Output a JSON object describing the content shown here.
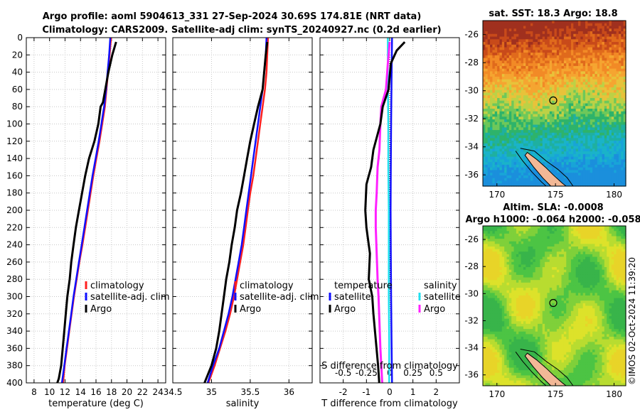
{
  "title": {
    "line1": "Argo profile: aoml 5904613_331 27-Sep-2024 30.69S 174.81E (NRT data)",
    "line2": "Climatology: CARS2009. Satellite-adj clim: synTS_20240927.nc (0.2d earlier)"
  },
  "depth_ticks": [
    0,
    20,
    40,
    60,
    80,
    100,
    120,
    140,
    160,
    180,
    200,
    220,
    240,
    260,
    280,
    300,
    320,
    340,
    360,
    380,
    400
  ],
  "colors": {
    "argo": "#000000",
    "climatology": "#ff2020",
    "satellite": "#1010ff",
    "sal_diff": "#ff20ff",
    "sal_sat": "#20e0f0"
  },
  "chart_data": [
    {
      "type": "line",
      "name": "temperature-panel",
      "xlabel": "temperature (deg C)",
      "ylabel": "",
      "xlim": [
        7,
        25
      ],
      "ylim": [
        400,
        0
      ],
      "xticks": [
        8,
        10,
        12,
        14,
        16,
        18,
        20,
        22,
        24
      ],
      "legend": [
        "climatology",
        "satellite-adj. clim",
        "Argo"
      ],
      "series": [
        {
          "name": "climatology",
          "depth": [
            0,
            20,
            40,
            60,
            80,
            100,
            120,
            140,
            160,
            180,
            200,
            220,
            240,
            260,
            280,
            300,
            320,
            340,
            360,
            380,
            400
          ],
          "values": [
            17.95,
            17.75,
            17.55,
            17.35,
            17.15,
            16.8,
            16.45,
            16.05,
            15.65,
            15.3,
            14.95,
            14.6,
            14.25,
            13.85,
            13.5,
            13.15,
            12.85,
            12.55,
            12.25,
            11.95,
            11.75
          ]
        },
        {
          "name": "satellite-adj. clim",
          "depth": [
            0,
            20,
            40,
            60,
            80,
            100,
            120,
            140,
            160,
            180,
            200,
            220,
            240,
            260,
            280,
            300,
            320,
            340,
            360,
            380,
            400
          ],
          "values": [
            17.85,
            17.7,
            17.5,
            17.3,
            17.05,
            16.7,
            16.35,
            15.95,
            15.55,
            15.2,
            14.85,
            14.5,
            14.15,
            13.8,
            13.45,
            13.1,
            12.8,
            12.5,
            12.2,
            11.9,
            11.6
          ]
        },
        {
          "name": "Argo",
          "depth": [
            5,
            20,
            40,
            60,
            75,
            80,
            100,
            120,
            140,
            160,
            180,
            200,
            220,
            240,
            260,
            280,
            300,
            320,
            340,
            360,
            380,
            395,
            400
          ],
          "values": [
            18.6,
            18.1,
            17.6,
            17.2,
            16.9,
            16.6,
            16.3,
            15.8,
            15.1,
            14.6,
            14.2,
            13.8,
            13.4,
            13.1,
            12.8,
            12.6,
            12.3,
            12.1,
            11.9,
            11.7,
            11.5,
            11.2,
            11.0
          ]
        }
      ]
    },
    {
      "type": "line",
      "name": "salinity-panel",
      "xlabel": "salinity",
      "ylabel": "",
      "xlim": [
        34.5,
        36.3
      ],
      "ylim": [
        400,
        0
      ],
      "xticks": [
        34.5,
        35,
        35.5,
        36
      ],
      "legend": [
        "climatology",
        "satellite-adj. clim",
        "Argo"
      ],
      "series": [
        {
          "name": "climatology",
          "depth": [
            0,
            20,
            40,
            60,
            80,
            100,
            120,
            140,
            160,
            180,
            200,
            220,
            240,
            260,
            280,
            300,
            320,
            340,
            360,
            380,
            400
          ],
          "values": [
            35.73,
            35.72,
            35.71,
            35.69,
            35.66,
            35.63,
            35.6,
            35.57,
            35.54,
            35.5,
            35.47,
            35.44,
            35.41,
            35.37,
            35.33,
            35.29,
            35.24,
            35.18,
            35.11,
            35.04,
            34.96
          ]
        },
        {
          "name": "satellite-adj. clim",
          "depth": [
            0,
            20,
            40,
            60,
            80,
            100,
            120,
            140,
            160,
            180,
            200,
            220,
            240,
            260,
            280,
            300,
            320,
            340,
            360,
            380,
            400
          ],
          "values": [
            35.71,
            35.7,
            35.68,
            35.66,
            35.63,
            35.6,
            35.57,
            35.54,
            35.51,
            35.48,
            35.45,
            35.42,
            35.39,
            35.35,
            35.31,
            35.27,
            35.22,
            35.16,
            35.1,
            35.02,
            34.95
          ]
        },
        {
          "name": "Argo",
          "depth": [
            5,
            20,
            40,
            60,
            80,
            100,
            120,
            140,
            160,
            180,
            200,
            220,
            240,
            260,
            280,
            300,
            320,
            340,
            360,
            380,
            400
          ],
          "values": [
            35.72,
            35.7,
            35.68,
            35.66,
            35.6,
            35.55,
            35.5,
            35.46,
            35.42,
            35.38,
            35.33,
            35.3,
            35.26,
            35.23,
            35.19,
            35.16,
            35.13,
            35.1,
            35.06,
            35.0,
            34.91
          ]
        }
      ]
    },
    {
      "type": "line",
      "name": "difference-panel",
      "xlabel": "T difference from climatology",
      "top_label": "S difference from climatology",
      "xlim": [
        -3,
        3
      ],
      "ylim": [
        400,
        0
      ],
      "xticks": [
        -2,
        -1,
        0,
        1,
        2
      ],
      "xticks_sal": [
        -0.5,
        -0.25,
        0,
        0.25,
        0.5
      ],
      "xticks_sal_labels": [
        "-0.5",
        "-0.25",
        "0",
        "0.25",
        "0.5"
      ],
      "legend_temperature_title": "temperature",
      "legend_salinity_title": "salinity",
      "legend": [
        "satellite",
        "Argo",
        "satellite",
        "Argo"
      ],
      "series": [
        {
          "name": "temperature satellite",
          "depth": [
            0,
            50,
            100,
            150,
            200,
            250,
            300,
            350,
            400
          ],
          "values": [
            0.1,
            0.08,
            0.06,
            0.05,
            0.04,
            0.05,
            0.06,
            0.08,
            0.1
          ]
        },
        {
          "name": "temperature Argo",
          "depth": [
            5,
            15,
            30,
            60,
            80,
            100,
            130,
            150,
            170,
            200,
            220,
            250,
            280,
            300,
            320,
            350,
            380,
            400
          ],
          "values": [
            0.65,
            0.3,
            0.05,
            -0.05,
            -0.3,
            -0.4,
            -0.7,
            -0.8,
            -1.0,
            -1.05,
            -1.0,
            -0.85,
            -0.9,
            -0.75,
            -0.7,
            -0.6,
            -0.5,
            -0.45
          ]
        },
        {
          "name": "salinity satellite",
          "depth": [
            0,
            50,
            100,
            150,
            200,
            250,
            300,
            350,
            400
          ],
          "values": [
            -0.02,
            -0.02,
            -0.015,
            -0.015,
            -0.01,
            -0.01,
            -0.01,
            -0.005,
            -0.005
          ]
        },
        {
          "name": "salinity Argo",
          "depth": [
            5,
            30,
            60,
            80,
            100,
            130,
            150,
            180,
            200,
            220,
            250,
            280,
            300,
            330,
            360,
            400
          ],
          "values": [
            0.0,
            -0.02,
            -0.04,
            -0.09,
            -0.1,
            -0.11,
            -0.13,
            -0.14,
            -0.15,
            -0.15,
            -0.14,
            -0.13,
            -0.12,
            -0.11,
            -0.1,
            -0.08
          ]
        }
      ]
    },
    {
      "type": "heatmap",
      "name": "sst-map",
      "title": "sat. SST: 18.3 Argo: 18.8",
      "xticks": [
        170,
        175,
        180
      ],
      "yticks": [
        -26,
        -28,
        -30,
        -32,
        -34,
        -36
      ],
      "xlim": [
        168.8,
        181
      ],
      "ylim": [
        -36.8,
        -25
      ]
    },
    {
      "type": "heatmap",
      "name": "sla-map",
      "title_line1": "Altim. SLA: -0.0008",
      "title_line2": "Argo h1000: -0.064 h2000: -0.058",
      "xticks": [
        170,
        175,
        180
      ],
      "yticks": [
        -26,
        -28,
        -30,
        -32,
        -34,
        -36
      ],
      "xlim": [
        168.8,
        181
      ],
      "ylim": [
        -36.8,
        -25
      ]
    }
  ],
  "watermark": "©IMOS 02-Oct-2024 11:39:20"
}
